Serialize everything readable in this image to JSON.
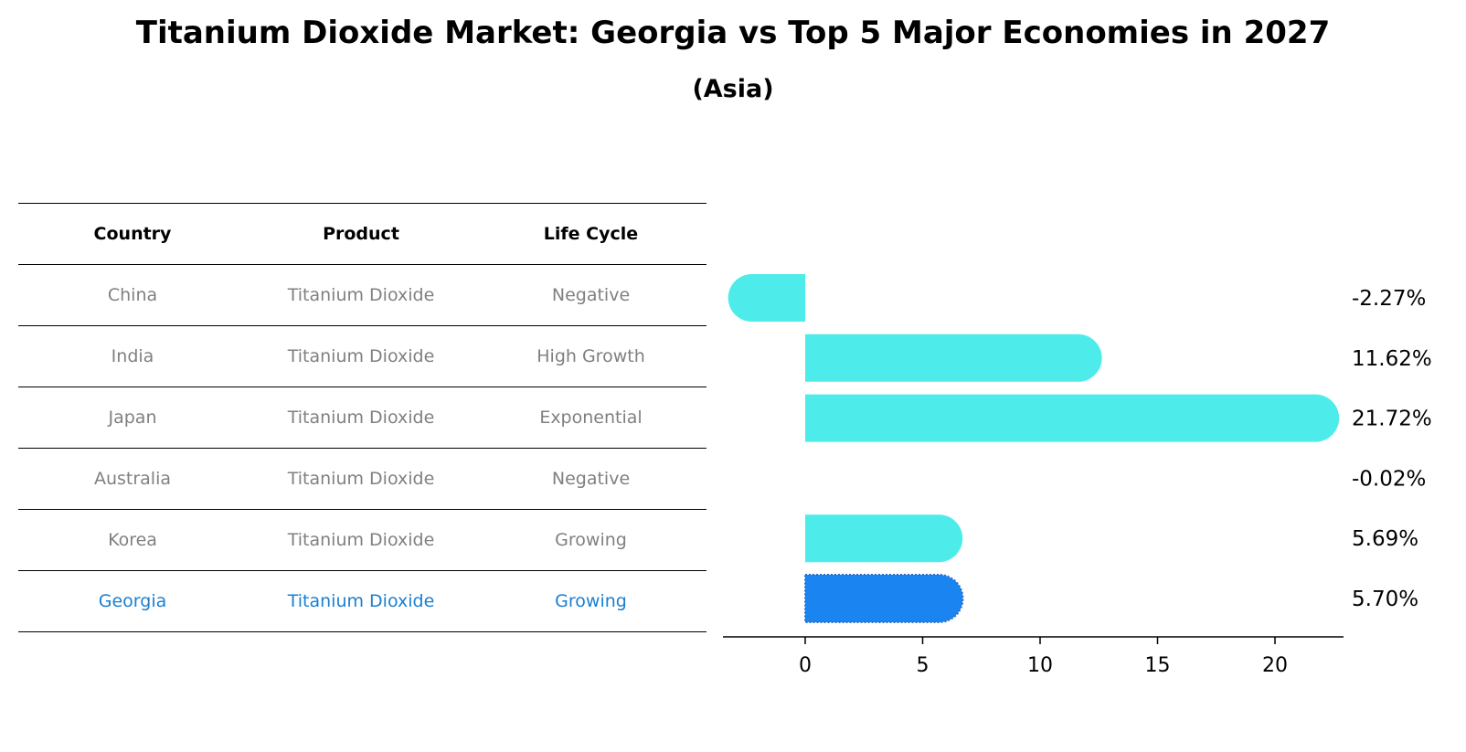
{
  "title": "Titanium Dioxide Market: Georgia vs Top 5 Major Economies in 2027",
  "subtitle": "(Asia)",
  "table": {
    "headers": [
      "Country",
      "Product",
      "Life Cycle"
    ],
    "rows": [
      [
        "China",
        "Titanium Dioxide",
        "Negative"
      ],
      [
        "India",
        "Titanium Dioxide",
        "High Growth"
      ],
      [
        "Japan",
        "Titanium Dioxide",
        "Exponential"
      ],
      [
        "Australia",
        "Titanium Dioxide",
        "Negative"
      ],
      [
        "Korea",
        "Titanium Dioxide",
        "Growing"
      ],
      [
        "Georgia",
        "Titanium Dioxide",
        "Growing"
      ]
    ]
  },
  "colors": {
    "bar": "#4deceb",
    "highlight": "#1a84f0",
    "highlight_text": "#1a7fd1",
    "muted_text": "#808080"
  },
  "chart_data": {
    "type": "bar",
    "orientation": "horizontal",
    "categories": [
      "China",
      "India",
      "Japan",
      "Australia",
      "Korea",
      "Georgia"
    ],
    "values": [
      -2.27,
      11.62,
      21.72,
      -0.02,
      5.69,
      5.7
    ],
    "value_labels": [
      "-2.27%",
      "11.62%",
      "21.72%",
      "-0.02%",
      "5.69%",
      "5.70%"
    ],
    "highlight": "Georgia",
    "xlim": [
      -3.5,
      23
    ],
    "xticks": [
      0,
      5,
      10,
      15,
      20
    ],
    "xlabel": "",
    "ylabel": "",
    "grid": false
  }
}
